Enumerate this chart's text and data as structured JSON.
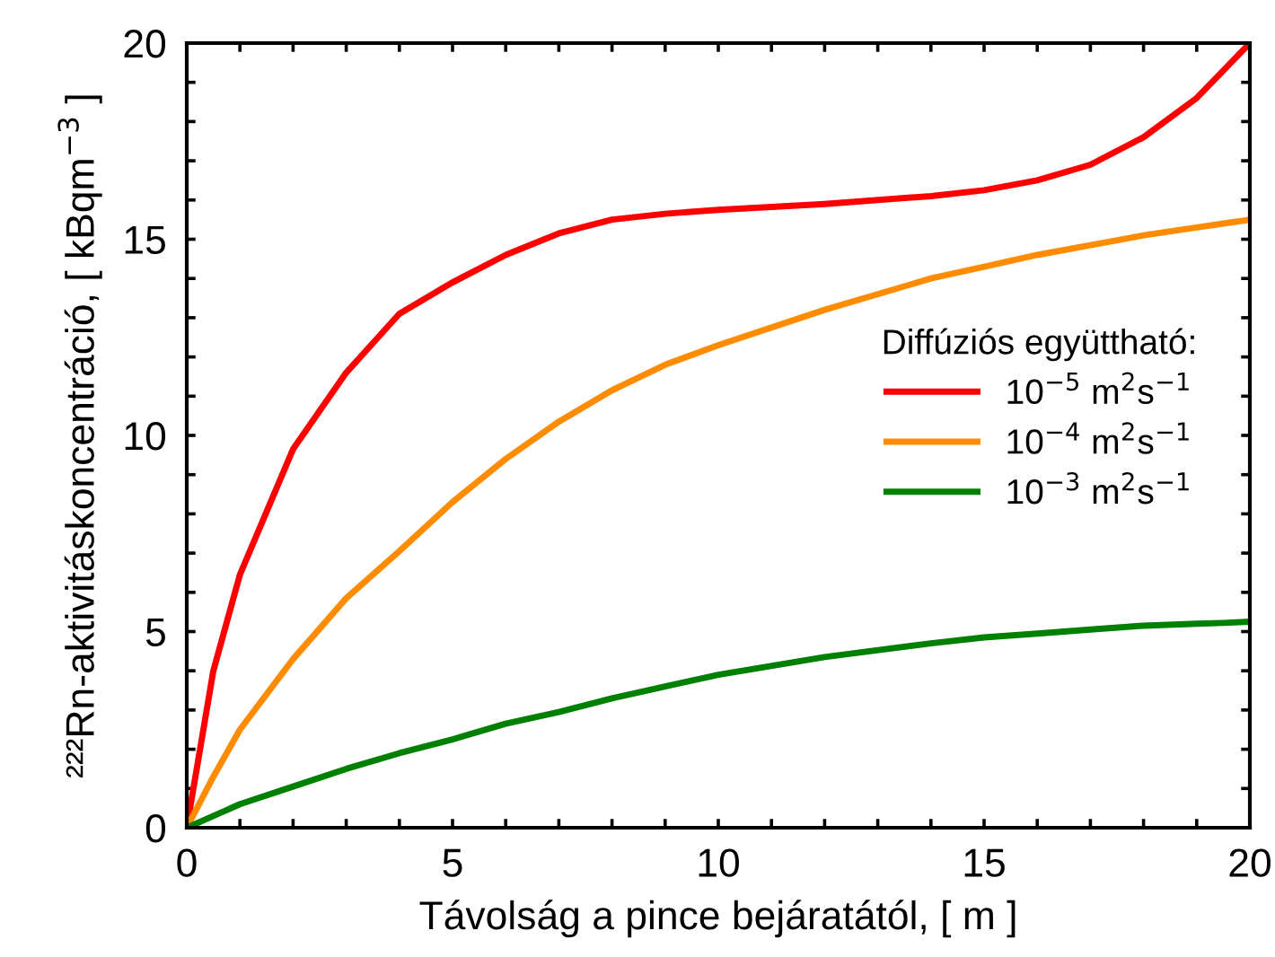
{
  "chart_data": {
    "type": "line",
    "xlabel": "Távolság a pince bejáratától, [ m ]",
    "ylabel": "²²²Rn-aktivitáskoncentráció, [ kBqm$^{−3}$ ]",
    "legend_title": "Diffúziós együttható:",
    "legend": "right",
    "line_style": "solid",
    "grid": false,
    "xlim": [
      0,
      20
    ],
    "ylim": [
      0,
      20
    ],
    "xticks": [
      0,
      {
        "value": 1,
        "label": null
      },
      {
        "value": 2,
        "label": null
      },
      {
        "value": 3,
        "label": null
      },
      {
        "value": 4,
        "label": null
      },
      5,
      {
        "value": 6,
        "label": null
      },
      {
        "value": 7,
        "label": null
      },
      {
        "value": 8,
        "label": null
      },
      {
        "value": 9,
        "label": null
      },
      10,
      {
        "value": 11,
        "label": null
      },
      {
        "value": 12,
        "label": null
      },
      {
        "value": 13,
        "label": null
      },
      {
        "value": 14,
        "label": null
      },
      15,
      {
        "value": 16,
        "label": null
      },
      {
        "value": 17,
        "label": null
      },
      {
        "value": 18,
        "label": null
      },
      {
        "value": 19,
        "label": null
      },
      20
    ],
    "yticks": [
      0,
      {
        "value": 1,
        "label": null
      },
      {
        "value": 2,
        "label": null
      },
      {
        "value": 3,
        "label": null
      },
      {
        "value": 4,
        "label": null
      },
      5,
      {
        "value": 6,
        "label": null
      },
      {
        "value": 7,
        "label": null
      },
      {
        "value": 8,
        "label": null
      },
      {
        "value": 9,
        "label": null
      },
      10,
      {
        "value": 11,
        "label": null
      },
      {
        "value": 12,
        "label": null
      },
      {
        "value": 13,
        "label": null
      },
      {
        "value": 14,
        "label": null
      },
      15,
      {
        "value": 16,
        "label": null
      },
      {
        "value": 17,
        "label": null
      },
      {
        "value": 18,
        "label": null
      },
      {
        "value": 19,
        "label": null
      },
      20
    ],
    "x": [
      0,
      0.5,
      1,
      2,
      3,
      4,
      5,
      6,
      7,
      8,
      9,
      10,
      12,
      14,
      15,
      16,
      17,
      18,
      19,
      19.5,
      20
    ],
    "series": [
      {
        "name": "10$^{−5}$ m$^{2}$s$^{−1}$",
        "color": "#ff0000",
        "values": [
          0,
          4.0,
          6.45,
          9.65,
          11.6,
          13.1,
          13.9,
          14.6,
          15.15,
          15.5,
          15.65,
          15.75,
          15.9,
          16.1,
          16.25,
          16.5,
          16.9,
          17.6,
          18.6,
          19.3,
          20
        ]
      },
      {
        "name": "10$^{−4}$ m$^{2}$s$^{−1}$",
        "color": "#ff8c00",
        "values": [
          0,
          1.3,
          2.5,
          4.3,
          5.85,
          7.05,
          8.3,
          9.4,
          10.35,
          11.15,
          11.8,
          12.3,
          13.2,
          14.0,
          14.3,
          14.6,
          14.85,
          15.1,
          15.3,
          15.4,
          15.5
        ]
      },
      {
        "name": "10$^{−3}$ m$^{2}$s$^{−1}$",
        "color": "#008000",
        "values": [
          0,
          0.3,
          0.6,
          1.05,
          1.5,
          1.9,
          2.25,
          2.65,
          2.95,
          3.3,
          3.6,
          3.9,
          4.35,
          4.7,
          4.85,
          4.95,
          5.05,
          5.15,
          5.2,
          5.22,
          5.25
        ]
      }
    ]
  }
}
